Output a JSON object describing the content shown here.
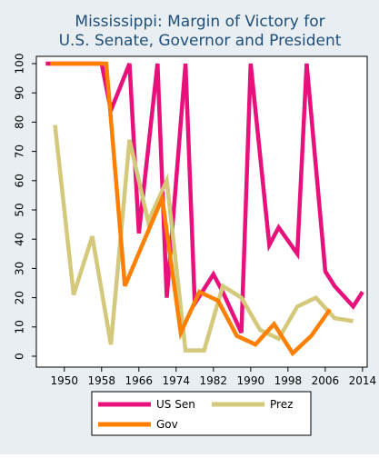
{
  "chart_data": {
    "type": "line",
    "title": [
      "Mississippi: Margin of Victory for",
      "U.S. Senate, Governor and President"
    ],
    "xlabel": "",
    "ylabel": "",
    "xlim": [
      1944,
      2015
    ],
    "ylim": [
      0,
      100
    ],
    "x_ticks": [
      1950,
      1958,
      1966,
      1974,
      1982,
      1990,
      1998,
      2006,
      2014
    ],
    "y_ticks": [
      0,
      10,
      20,
      30,
      40,
      50,
      60,
      70,
      80,
      90,
      100
    ],
    "grid": false,
    "legend_position": "bottom",
    "series": [
      {
        "name": "US Sen",
        "color": "#e8107a",
        "points": [
          [
            1946,
            100
          ],
          [
            1952,
            100
          ],
          [
            1958,
            100
          ],
          [
            1960,
            84
          ],
          [
            1964,
            100
          ],
          [
            1966,
            42
          ],
          [
            1970,
            100
          ],
          [
            1972,
            20
          ],
          [
            1976,
            100
          ],
          [
            1978,
            18
          ],
          [
            1982,
            28
          ],
          [
            1984,
            22
          ],
          [
            1988,
            8
          ],
          [
            1990,
            100
          ],
          [
            1994,
            38
          ],
          [
            1996,
            44
          ],
          [
            2000,
            35
          ],
          [
            2002,
            100
          ],
          [
            2006,
            29
          ],
          [
            2008,
            24
          ],
          [
            2012,
            17
          ],
          [
            2014,
            22
          ]
        ]
      },
      {
        "name": "Prez",
        "color": "#d4c87a",
        "points": [
          [
            1948,
            79
          ],
          [
            1952,
            21
          ],
          [
            1956,
            41
          ],
          [
            1960,
            4
          ],
          [
            1964,
            74
          ],
          [
            1968,
            46
          ],
          [
            1972,
            60
          ],
          [
            1976,
            2
          ],
          [
            1980,
            2
          ],
          [
            1984,
            24
          ],
          [
            1988,
            20
          ],
          [
            1992,
            9
          ],
          [
            1996,
            6
          ],
          [
            2000,
            17
          ],
          [
            2004,
            20
          ],
          [
            2008,
            13
          ],
          [
            2012,
            12
          ]
        ]
      },
      {
        "name": "Gov",
        "color": "#ff7f00",
        "points": [
          [
            1947,
            100
          ],
          [
            1951,
            100
          ],
          [
            1955,
            100
          ],
          [
            1959,
            100
          ],
          [
            1963,
            24
          ],
          [
            1967,
            39
          ],
          [
            1971,
            54
          ],
          [
            1975,
            8
          ],
          [
            1979,
            22
          ],
          [
            1983,
            19
          ],
          [
            1987,
            7
          ],
          [
            1991,
            4
          ],
          [
            1995,
            11
          ],
          [
            1999,
            1
          ],
          [
            2003,
            7
          ],
          [
            2007,
            16
          ]
        ]
      }
    ]
  }
}
